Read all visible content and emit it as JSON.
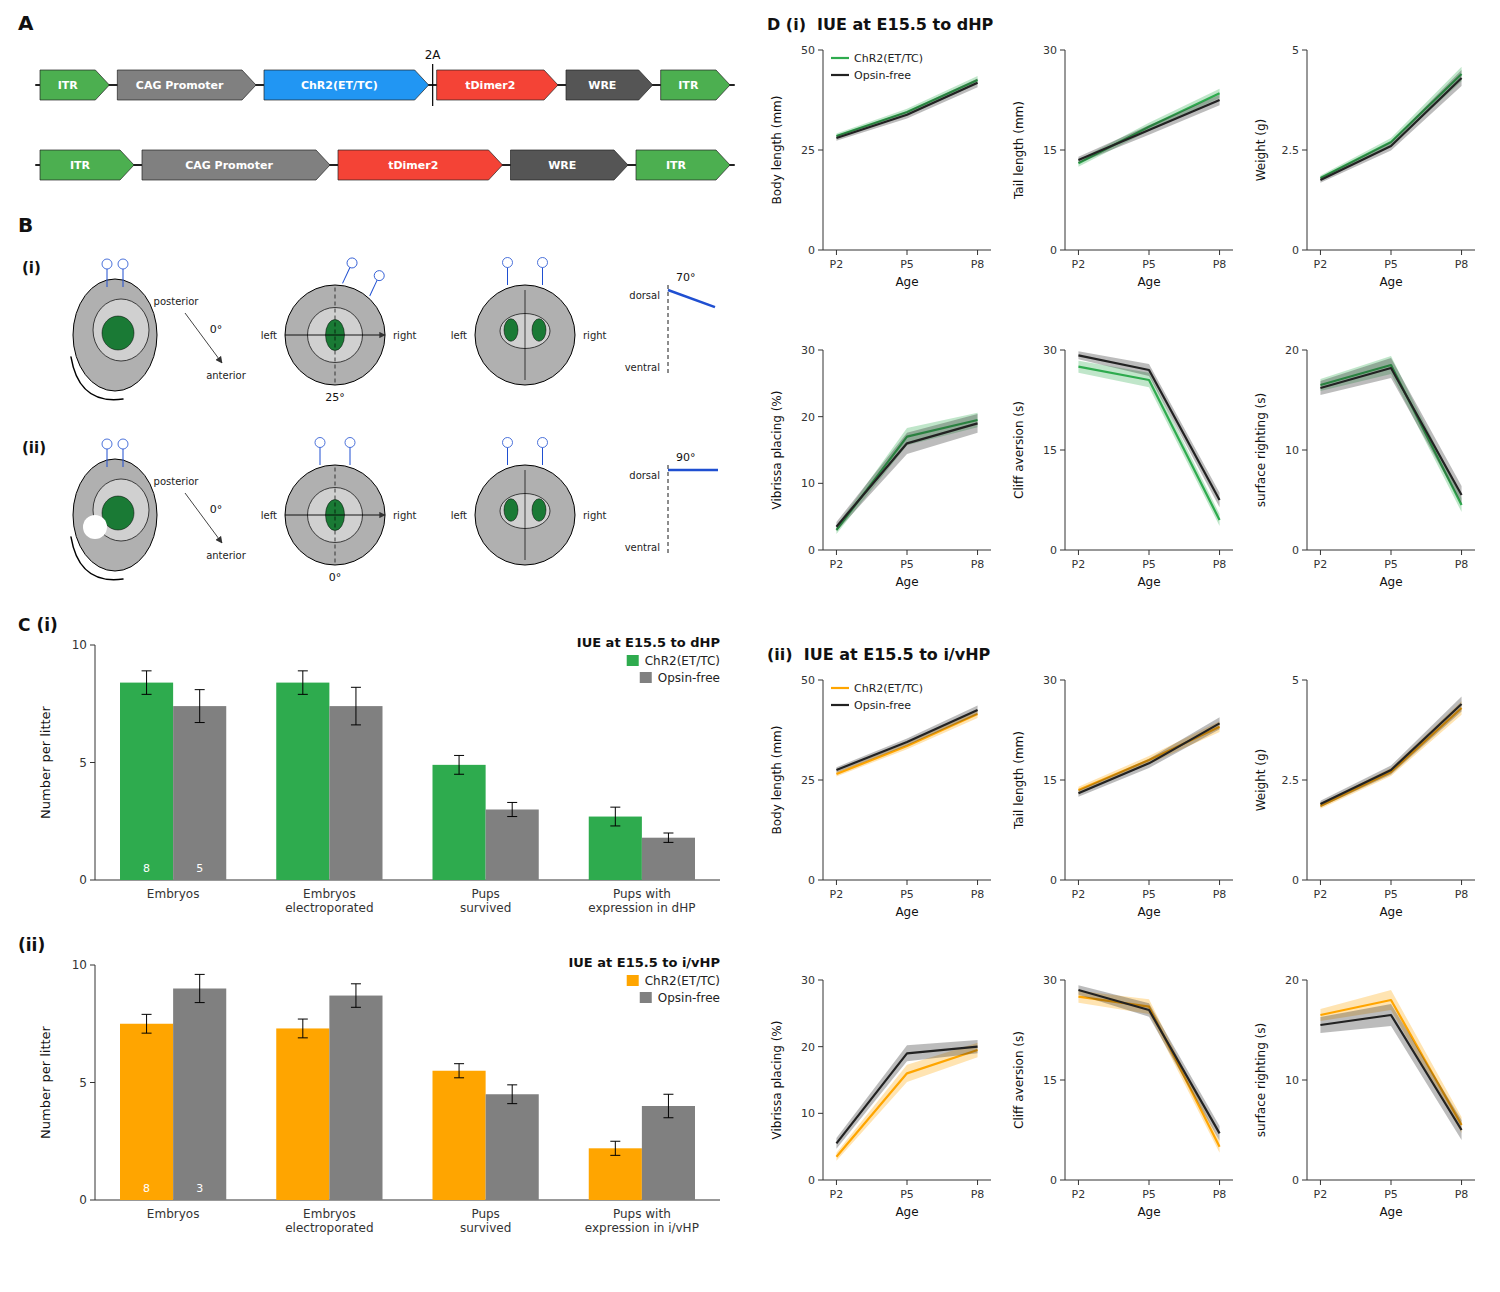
{
  "chart_data": [
    {
      "type": "construct",
      "title": "A",
      "annotations": [
        "2A"
      ],
      "series": [
        {
          "categories": [
            "ITR",
            "CAG Promoter",
            "ChR2(ET/TC)",
            "tDimer2",
            "WRE",
            "ITR"
          ],
          "colors": [
            "#4CAF50",
            "#808080",
            "#2196F3",
            "#F44336",
            "#555555",
            "#4CAF50"
          ],
          "values": [
            0.08,
            0.16,
            0.19,
            0.14,
            0.1,
            0.08
          ]
        },
        {
          "categories": [
            "ITR",
            "CAG Promoter",
            "tDimer2",
            "WRE",
            "ITR"
          ],
          "colors": [
            "#4CAF50",
            "#808080",
            "#F44336",
            "#555555",
            "#4CAF50"
          ],
          "values": [
            0.08,
            0.16,
            0.14,
            0.1,
            0.08
          ]
        }
      ]
    },
    {
      "type": "diagram",
      "title": "B",
      "annotations": [
        "anterior",
        "posterior",
        "0°",
        "left",
        "right",
        "dorsal",
        "ventral"
      ],
      "series": [
        {
          "name": "(i)",
          "values": [
            25,
            70
          ],
          "value_labels": [
            "25°",
            "70°"
          ]
        },
        {
          "name": "(ii)",
          "values": [
            0,
            90
          ],
          "value_labels": [
            "0°",
            "90°"
          ]
        }
      ]
    },
    {
      "type": "bar",
      "title": "IUE at E15.5 to dHP",
      "annotations": [
        "C (i)"
      ],
      "categories": [
        "Embryos",
        "Embryos\nelectroporated",
        "Pups\nsurvived",
        "Pups with\nexpression in dHP"
      ],
      "ylabel": "Number per litter",
      "ylim": [
        0,
        10
      ],
      "yticks": [
        0,
        5,
        10
      ],
      "legend": "upper right",
      "series": [
        {
          "name": "ChR2(ET/TC)",
          "color": "#2eab4e",
          "values": [
            8.4,
            8.4,
            4.9,
            2.7
          ],
          "errors": [
            0.5,
            0.5,
            0.4,
            0.4
          ],
          "n": 8
        },
        {
          "name": "Opsin-free",
          "color": "#808080",
          "values": [
            7.4,
            7.4,
            3.0,
            1.8
          ],
          "errors": [
            0.7,
            0.8,
            0.3,
            0.2
          ],
          "n": 5
        }
      ]
    },
    {
      "type": "bar",
      "title": "IUE at E15.5 to i/vHP",
      "annotations": [
        "(ii)"
      ],
      "categories": [
        "Embryos",
        "Embryos\nelectroporated",
        "Pups\nsurvived",
        "Pups with\nexpression in i/vHP"
      ],
      "ylabel": "Number per litter",
      "ylim": [
        0,
        10
      ],
      "yticks": [
        0,
        5,
        10
      ],
      "legend": "upper right",
      "series": [
        {
          "name": "ChR2(ET/TC)",
          "color": "#FFA500",
          "values": [
            7.5,
            7.3,
            5.5,
            2.2
          ],
          "errors": [
            0.4,
            0.4,
            0.3,
            0.3
          ],
          "n": 8
        },
        {
          "name": "Opsin-free",
          "color": "#808080",
          "values": [
            9.0,
            8.7,
            4.5,
            4.0
          ],
          "errors": [
            0.6,
            0.5,
            0.4,
            0.5
          ],
          "n": 3
        }
      ]
    },
    {
      "type": "line",
      "title": "D (i)  IUE at E15.5 to dHP",
      "legend": "upper left",
      "categories": [
        "P2",
        "P5",
        "P8"
      ],
      "xlabel": "Age",
      "ylabel": "Body length (mm)",
      "ylim": [
        0,
        50
      ],
      "yticks": [
        0,
        25,
        50
      ],
      "series": [
        {
          "name": "ChR2(ET/TC)",
          "color": "#2eab4e",
          "values": [
            28.5,
            34.5,
            42.5
          ],
          "errors": [
            0.6,
            0.8,
            1.0
          ]
        },
        {
          "name": "Opsin-free",
          "color": "#222222",
          "values": [
            28.0,
            33.8,
            41.8
          ],
          "errors": [
            0.7,
            0.9,
            1.1
          ]
        }
      ]
    },
    {
      "type": "line",
      "categories": [
        "P2",
        "P5",
        "P8"
      ],
      "xlabel": "Age",
      "ylabel": "Tail length (mm)",
      "ylim": [
        0,
        30
      ],
      "yticks": [
        0,
        15,
        30
      ],
      "series": [
        {
          "color": "#2eab4e",
          "values": [
            13.0,
            18.5,
            23.5
          ],
          "errors": [
            0.5,
            0.6,
            0.7
          ]
        },
        {
          "color": "#222222",
          "values": [
            13.5,
            18.0,
            22.5
          ],
          "errors": [
            0.5,
            0.7,
            0.8
          ]
        }
      ]
    },
    {
      "type": "line",
      "categories": [
        "P2",
        "P5",
        "P8"
      ],
      "xlabel": "Age",
      "ylabel": "Weight (g)",
      "ylim": [
        0,
        5
      ],
      "yticks": [
        0,
        2.5,
        5
      ],
      "series": [
        {
          "color": "#2eab4e",
          "values": [
            1.8,
            2.7,
            4.4
          ],
          "errors": [
            0.06,
            0.1,
            0.18
          ]
        },
        {
          "color": "#222222",
          "values": [
            1.75,
            2.6,
            4.3
          ],
          "errors": [
            0.07,
            0.11,
            0.2
          ]
        }
      ]
    },
    {
      "type": "line",
      "categories": [
        "P2",
        "P5",
        "P8"
      ],
      "xlabel": "Age",
      "ylabel": "Vibrissa placing (%)",
      "ylim": [
        0,
        30
      ],
      "yticks": [
        0,
        10,
        20,
        30
      ],
      "series": [
        {
          "color": "#2eab4e",
          "values": [
            3.0,
            17.0,
            19.5
          ],
          "errors": [
            0.6,
            1.3,
            1.1
          ]
        },
        {
          "color": "#222222",
          "values": [
            3.5,
            16.0,
            19.0
          ],
          "errors": [
            0.7,
            1.6,
            1.4
          ]
        }
      ]
    },
    {
      "type": "line",
      "categories": [
        "P2",
        "P5",
        "P8"
      ],
      "xlabel": "Age",
      "ylabel": "Cliff aversion (s)",
      "ylim": [
        0,
        30
      ],
      "yticks": [
        0,
        15,
        30
      ],
      "series": [
        {
          "color": "#2eab4e",
          "values": [
            27.5,
            25.5,
            4.5
          ],
          "errors": [
            0.9,
            1.1,
            0.9
          ]
        },
        {
          "color": "#222222",
          "values": [
            29.2,
            27.0,
            7.5
          ],
          "errors": [
            0.6,
            0.9,
            1.1
          ]
        }
      ]
    },
    {
      "type": "line",
      "categories": [
        "P2",
        "P5",
        "P8"
      ],
      "xlabel": "Age",
      "ylabel": "surface righting (s)",
      "ylim": [
        0,
        20
      ],
      "yticks": [
        0,
        10,
        20
      ],
      "series": [
        {
          "color": "#2eab4e",
          "values": [
            16.5,
            18.5,
            4.5
          ],
          "errors": [
            0.6,
            0.9,
            0.7
          ]
        },
        {
          "color": "#222222",
          "values": [
            16.2,
            18.2,
            5.5
          ],
          "errors": [
            0.7,
            1.0,
            0.9
          ]
        }
      ]
    },
    {
      "type": "line",
      "title": "(ii)  IUE at E15.5 to i/vHP",
      "legend": "upper left",
      "categories": [
        "P2",
        "P5",
        "P8"
      ],
      "xlabel": "Age",
      "ylabel": "Body length (mm)",
      "ylim": [
        0,
        50
      ],
      "yticks": [
        0,
        25,
        50
      ],
      "series": [
        {
          "name": "ChR2(ET/TC)",
          "color": "#FFA500",
          "values": [
            26.5,
            33.5,
            41.5
          ],
          "errors": [
            0.6,
            0.8,
            1.0
          ]
        },
        {
          "name": "Opsin-free",
          "color": "#222222",
          "values": [
            27.5,
            34.5,
            42.5
          ],
          "errors": [
            0.7,
            0.9,
            1.1
          ]
        }
      ]
    },
    {
      "type": "line",
      "categories": [
        "P2",
        "P5",
        "P8"
      ],
      "xlabel": "Age",
      "ylabel": "Tail length (mm)",
      "ylim": [
        0,
        30
      ],
      "yticks": [
        0,
        15,
        30
      ],
      "series": [
        {
          "color": "#FFA500",
          "values": [
            13.5,
            18.0,
            23.0
          ],
          "errors": [
            0.5,
            0.6,
            0.8
          ]
        },
        {
          "color": "#222222",
          "values": [
            13.0,
            17.5,
            23.5
          ],
          "errors": [
            0.5,
            0.7,
            0.9
          ]
        }
      ]
    },
    {
      "type": "line",
      "categories": [
        "P2",
        "P5",
        "P8"
      ],
      "xlabel": "Age",
      "ylabel": "Weight (g)",
      "ylim": [
        0,
        5
      ],
      "yticks": [
        0,
        2.5,
        5
      ],
      "series": [
        {
          "color": "#FFA500",
          "values": [
            1.85,
            2.7,
            4.3
          ],
          "errors": [
            0.07,
            0.1,
            0.17
          ]
        },
        {
          "color": "#222222",
          "values": [
            1.9,
            2.75,
            4.4
          ],
          "errors": [
            0.08,
            0.11,
            0.19
          ]
        }
      ]
    },
    {
      "type": "line",
      "categories": [
        "P2",
        "P5",
        "P8"
      ],
      "xlabel": "Age",
      "ylabel": "Vibrissa placing (%)",
      "ylim": [
        0,
        30
      ],
      "yticks": [
        0,
        10,
        20,
        30
      ],
      "series": [
        {
          "color": "#FFA500",
          "values": [
            3.5,
            16.0,
            19.5
          ],
          "errors": [
            0.6,
            1.3,
            1.1
          ]
        },
        {
          "color": "#222222",
          "values": [
            5.5,
            19.0,
            20.0
          ],
          "errors": [
            0.8,
            1.2,
            1.0
          ]
        }
      ]
    },
    {
      "type": "line",
      "categories": [
        "P2",
        "P5",
        "P8"
      ],
      "xlabel": "Age",
      "ylabel": "Cliff aversion (s)",
      "ylim": [
        0,
        30
      ],
      "yticks": [
        0,
        15,
        30
      ],
      "series": [
        {
          "color": "#FFA500",
          "values": [
            27.5,
            26.0,
            5.0
          ],
          "errors": [
            0.9,
            1.1,
            0.9
          ]
        },
        {
          "color": "#222222",
          "values": [
            28.5,
            25.5,
            7.0
          ],
          "errors": [
            0.7,
            1.0,
            1.1
          ]
        }
      ]
    },
    {
      "type": "line",
      "categories": [
        "P2",
        "P5",
        "P8"
      ],
      "xlabel": "Age",
      "ylabel": "surface righting (s)",
      "ylim": [
        0,
        20
      ],
      "yticks": [
        0,
        10,
        20
      ],
      "series": [
        {
          "color": "#FFA500",
          "values": [
            16.5,
            18.0,
            5.5
          ],
          "errors": [
            0.6,
            1.0,
            0.8
          ]
        },
        {
          "color": "#222222",
          "values": [
            15.5,
            16.5,
            5.0
          ],
          "errors": [
            0.8,
            1.1,
            1.0
          ]
        }
      ]
    }
  ]
}
